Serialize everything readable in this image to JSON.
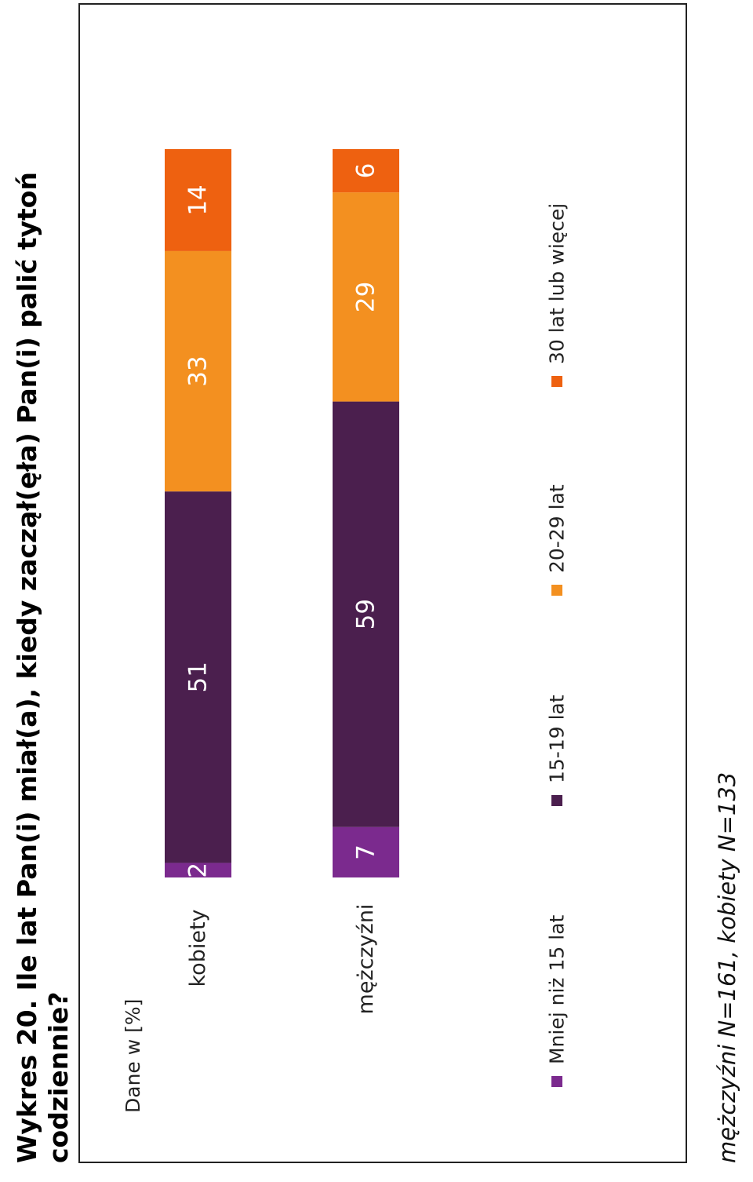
{
  "title": "Wykres 20. Ile lat Pan(i) miał(a), kiedy zaczął(ęła) Pan(i) palić tytoń codziennie?",
  "title_line1": "Wykres 20. Ile lat Pan(i) miał(a), kiedy zaczął(ęła) Pan(i) palić tytoń",
  "title_line2": "codziennie?",
  "footnote": "mężczyźni N=161, kobiety N=133",
  "chart_data": {
    "type": "bar",
    "stacked": true,
    "orientation": "horizontal",
    "rotated_90_ccw": true,
    "unit_label": "Dane w [%]",
    "categories": [
      "kobiety",
      "mężczyźni"
    ],
    "series": [
      {
        "name": "Mniej niż 15 lat",
        "values": [
          2,
          7
        ],
        "color": "#7b2a8e"
      },
      {
        "name": "15-19 lat",
        "values": [
          51,
          59
        ],
        "color": "#4b1f4e"
      },
      {
        "name": "20-29 lat",
        "values": [
          33,
          29
        ],
        "color": "#f39020"
      },
      {
        "name": "30 lat lub więcej",
        "values": [
          14,
          6
        ],
        "color": "#ee6110"
      }
    ],
    "xlim": [
      0,
      100
    ],
    "legend_position": "bottom",
    "data_label_color": "#ffffff"
  }
}
